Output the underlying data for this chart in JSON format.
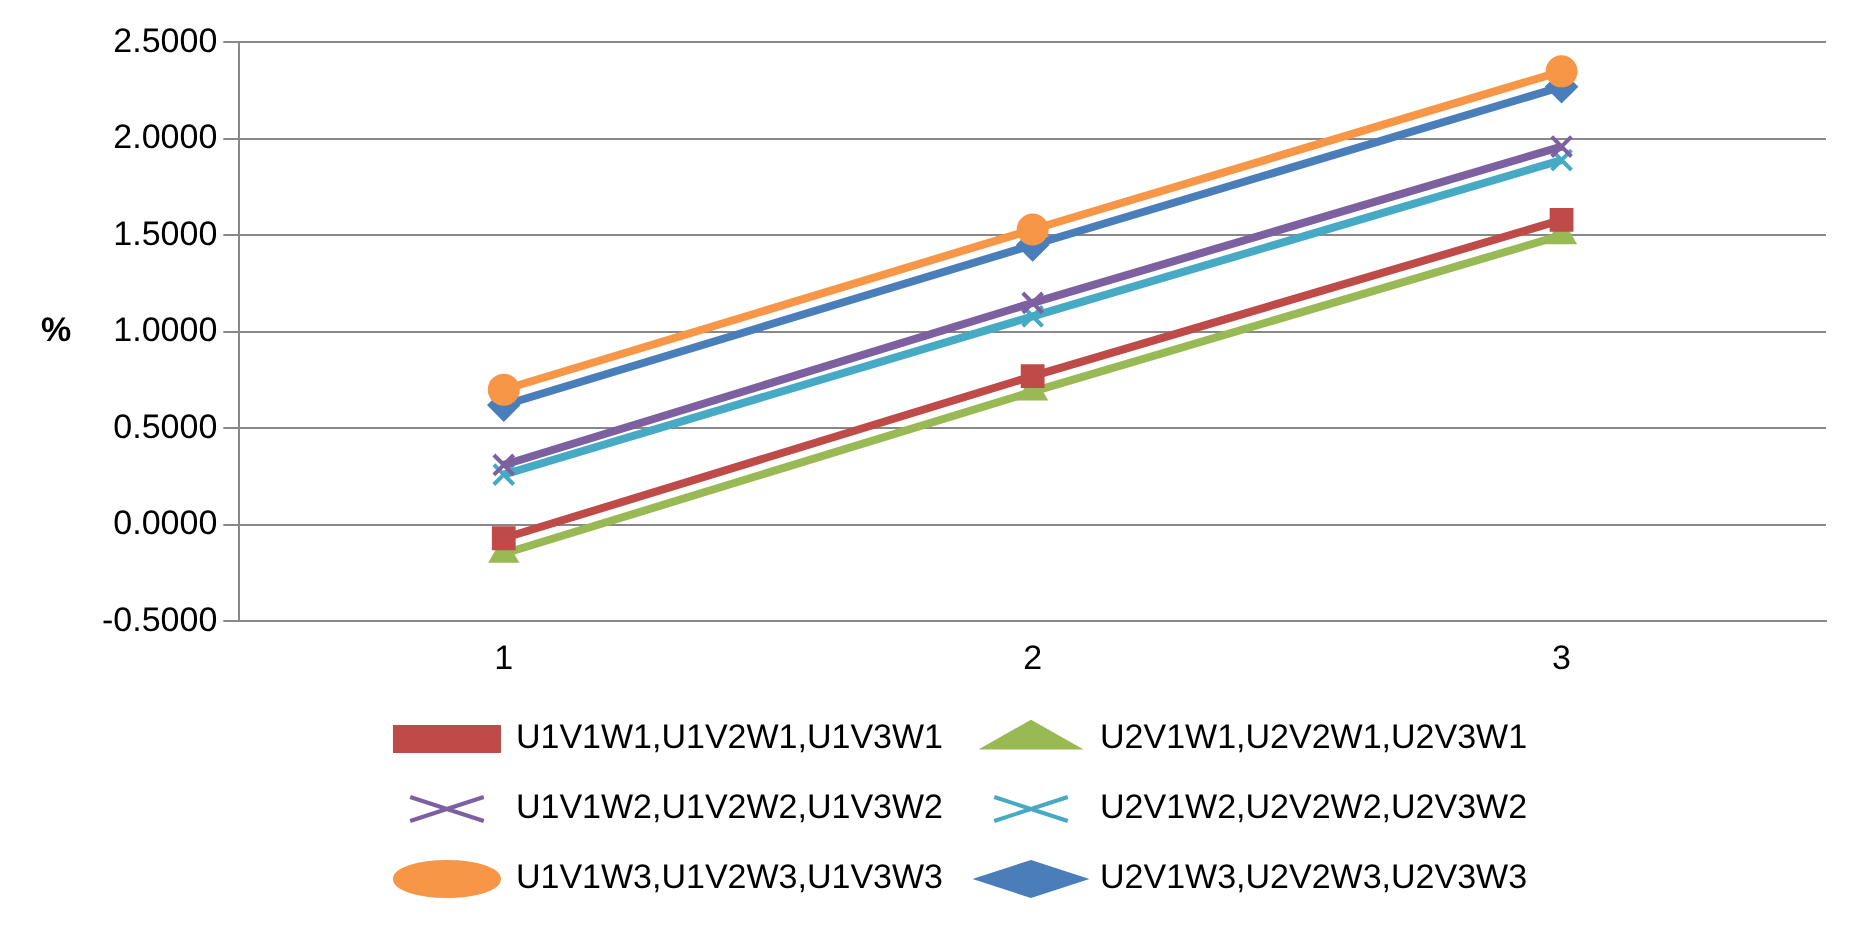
{
  "chart_data": {
    "type": "line",
    "ylabel": "%",
    "categories": [
      "1",
      "2",
      "3"
    ],
    "series": [
      {
        "name": "U1V1W1,U1V2W1,U1V3W1",
        "color": "#be4b48",
        "marker": "square",
        "values": [
          -0.07,
          0.77,
          1.58
        ]
      },
      {
        "name": "U2V1W1,U2V2W1,U2V3W1",
        "color": "#98b954",
        "marker": "triangle",
        "values": [
          -0.15,
          0.69,
          1.5
        ]
      },
      {
        "name": "U1V1W2,U1V2W2,U1V3W2",
        "color": "#7d60a0",
        "marker": "cross",
        "values": [
          0.31,
          1.15,
          1.96
        ]
      },
      {
        "name": "U2V1W2,U2V2W2,U2V3W2",
        "color": "#46aac5",
        "marker": "cross",
        "values": [
          0.26,
          1.08,
          1.89
        ]
      },
      {
        "name": "U1V1W3,U1V2W3,U1V3W3",
        "color": "#f79646",
        "marker": "circle",
        "values": [
          0.7,
          1.53,
          2.35
        ]
      },
      {
        "name": "U2V1W3,U2V2W3,U2V3W3",
        "color": "#4a7ebb",
        "marker": "diamond",
        "values": [
          0.62,
          1.45,
          2.27
        ]
      }
    ],
    "ylim": [
      -0.5,
      2.5
    ],
    "yticks": [
      {
        "value": -0.5,
        "label": "-0.5000"
      },
      {
        "value": 0,
        "label": "0.0000"
      },
      {
        "value": 0.5,
        "label": "0.5000"
      },
      {
        "value": 1,
        "label": "1.0000"
      },
      {
        "value": 1.5,
        "label": "1.5000"
      },
      {
        "value": 2,
        "label": "2.0000"
      },
      {
        "value": 2.5,
        "label": "2.5000"
      }
    ],
    "grid": "y",
    "legend": "bottom"
  }
}
